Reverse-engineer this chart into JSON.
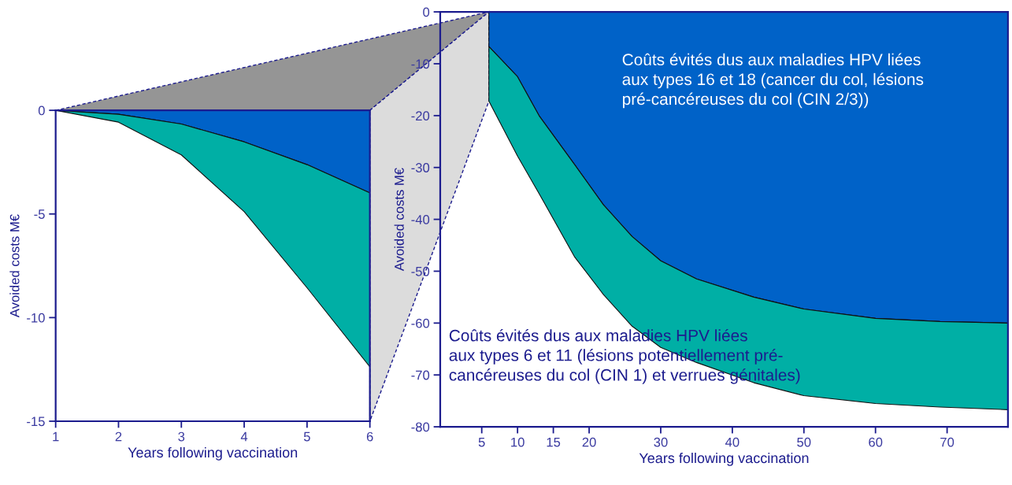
{
  "chart_data": [
    {
      "type": "area",
      "stacked": true,
      "xlabel": "Years following vaccination",
      "ylabel": "Avoided costs M€",
      "x": [
        1,
        2,
        3,
        4,
        5,
        6
      ],
      "series": [
        {
          "color": "#0062c8",
          "values": [
            0,
            -0.19,
            -0.66,
            -1.52,
            -2.62,
            -3.98
          ]
        },
        {
          "color": "#00afa5",
          "values": [
            0,
            -0.38,
            -1.49,
            -3.37,
            -5.94,
            -8.4
          ]
        }
      ],
      "xlim": [
        1,
        6
      ],
      "xticks": [
        1,
        2,
        3,
        4,
        5,
        6
      ],
      "ylim": [
        -15,
        0
      ],
      "yticks": [
        -15,
        -10,
        -5,
        0
      ],
      "grid": false
    },
    {
      "type": "area",
      "stacked": true,
      "xlabel": "Years following vaccination",
      "ylabel": "Avoided costs M€",
      "x": [
        6,
        10,
        13,
        18,
        22,
        26,
        30,
        35,
        43,
        50,
        60,
        69,
        78.5
      ],
      "series": [
        {
          "color": "#0062c8",
          "values": [
            -6.7,
            -12.5,
            -20,
            -29.5,
            -37.2,
            -43.3,
            -48,
            -51.5,
            -55,
            -57.3,
            -59.1,
            -59.7,
            -60
          ]
        },
        {
          "color": "#00afa5",
          "values": [
            -10.5,
            -15.3,
            -15,
            -17.8,
            -17.3,
            -17.3,
            -16.7,
            -16.1,
            -16.5,
            -16.7,
            -16.4,
            -16.5,
            -16.7
          ]
        }
      ],
      "annotations": [
        "Coûts évités dus aux maladies HPV liées\naux types 16 et 18 (cancer du col, lésions\npré-cancéreuses du col (CIN 2/3))",
        "Coûts évités dus aux maladies HPV liées\naux types 6 et 11 (lésions potentiellement pré-\ncancéreuses du col (CIN 1) et verrues génitales)"
      ],
      "xlim": [
        -0.8,
        78.5
      ],
      "xticks": [
        5,
        10,
        15,
        20,
        30,
        40,
        50,
        60,
        70
      ],
      "ylim": [
        -80,
        0
      ],
      "yticks": [
        -80,
        -70,
        -60,
        -50,
        -40,
        -30,
        -20,
        -10,
        0
      ],
      "grid": false
    }
  ]
}
